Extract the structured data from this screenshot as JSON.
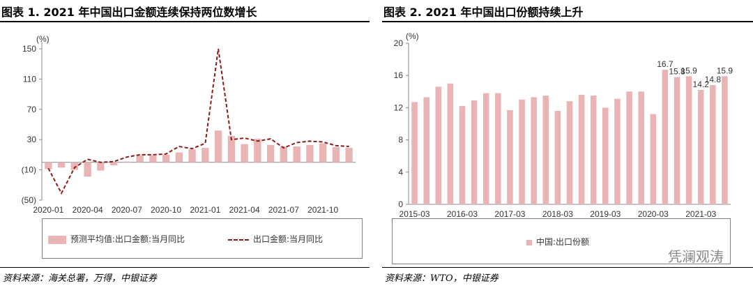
{
  "left": {
    "title": "图表 1. 2021 年中国出口金额连续保持两位数增长",
    "source": "资料来源：海关总署，万得，中银证券",
    "legend": {
      "bar": "预测平均值:出口金额:当月同比",
      "line": "出口金额:当月同比"
    }
  },
  "right": {
    "title": "图表 2. 2021 年中国出口份额持续上升",
    "source": "资料来源：WTO，中银证券",
    "legend": {
      "bar": "中国:出口份额"
    }
  },
  "watermark": "凭澜观涛",
  "chart_data": [
    {
      "type": "bar",
      "title": "图表 1. 2021 年中国出口金额连续保持两位数增长",
      "unit": "(%)",
      "ylim": [
        -50,
        150
      ],
      "yticks": [
        "(50)",
        "(10)",
        "30",
        "70",
        "110",
        "150"
      ],
      "xtick_labels": [
        "2020-01",
        "2020-04",
        "2020-07",
        "2020-10",
        "2021-01",
        "2021-04",
        "2021-07",
        "2021-10"
      ],
      "x": [
        "2020-01",
        "2020-02",
        "2020-03",
        "2020-04",
        "2020-05",
        "2020-06",
        "2020-07",
        "2020-08",
        "2020-09",
        "2020-10",
        "2020-11",
        "2020-12",
        "2021-01",
        "2021-02",
        "2021-03",
        "2021-04",
        "2021-05",
        "2021-06",
        "2021-07",
        "2021-08",
        "2021-09",
        "2021-10",
        "2021-11",
        "2021-12"
      ],
      "series": [
        {
          "name": "预测平均值:出口金额:当月同比",
          "type": "bar",
          "values": [
            -9,
            -7,
            -10,
            -19,
            -11,
            -4,
            1,
            9,
            9,
            10,
            13,
            17,
            19,
            42,
            35,
            24,
            31,
            23,
            21,
            21,
            23,
            25,
            20,
            19
          ]
        },
        {
          "name": "出口金额:当月同比",
          "type": "line",
          "style": "dashed",
          "values": [
            -8,
            -41,
            -7,
            4,
            0,
            1,
            7,
            10,
            10,
            11,
            21,
            18,
            25,
            150,
            30,
            32,
            28,
            31,
            19,
            26,
            28,
            27,
            22,
            21
          ]
        }
      ]
    },
    {
      "type": "bar",
      "title": "图表 2. 2021 年中国出口份额持续上升",
      "unit": "(%)",
      "ylim": [
        0,
        20
      ],
      "yticks": [
        "0",
        "4",
        "8",
        "12",
        "16",
        "20"
      ],
      "xtick_labels": [
        "2015-03",
        "2016-03",
        "2017-03",
        "2018-03",
        "2019-03",
        "2020-03",
        "2021-03"
      ],
      "series": [
        {
          "name": "中国:出口份额",
          "values": [
            12.7,
            13.3,
            14.6,
            15.0,
            12.2,
            12.9,
            13.8,
            13.8,
            11.7,
            13.0,
            13.3,
            13.5,
            11.6,
            12.8,
            13.6,
            13.5,
            12.0,
            13.1,
            14.0,
            14.0,
            11.2,
            16.7,
            15.8,
            15.9,
            14.2,
            14.8,
            15.9
          ],
          "data_labels": {
            "21": "16.7",
            "22": "15.8",
            "23": "15.9",
            "24": "14.2",
            "25": "14.8",
            "26": "15.9"
          }
        }
      ]
    }
  ]
}
